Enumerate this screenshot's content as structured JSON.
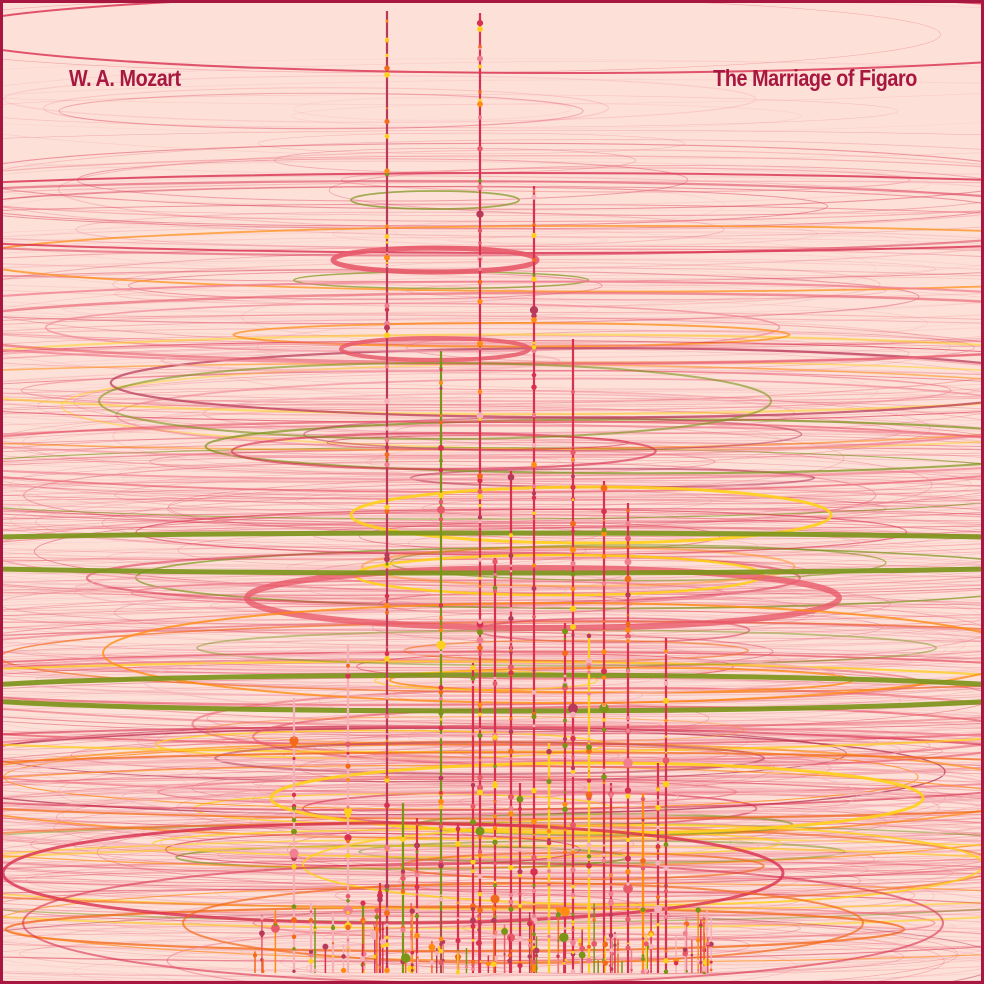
{
  "poster": {
    "composer": "W. A. Mozart",
    "work": "The Marriage of Figaro"
  },
  "colors": {
    "background": "#fde0d8",
    "border": "#a8173f",
    "title": "#a8173f",
    "palette": [
      "#d8304f",
      "#e85a6a",
      "#f08090",
      "#f5b0b8",
      "#ffd01a",
      "#ff8c10",
      "#7a9418",
      "#b83a5a",
      "#f26a1a"
    ]
  },
  "icons": {
    "artwork": "concentric-ellipses-and-stems-visualization"
  }
}
